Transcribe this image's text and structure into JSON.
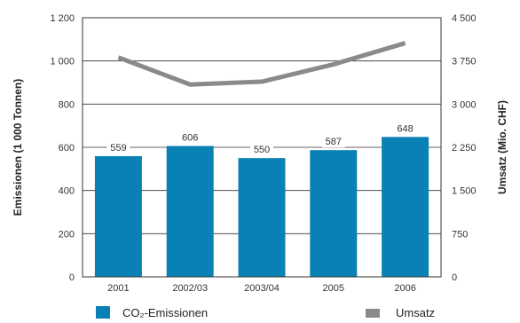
{
  "chart_data": {
    "type": "bar",
    "categories": [
      "2001",
      "2002/03",
      "2003/04",
      "2005",
      "2006"
    ],
    "series": [
      {
        "name": "CO₂-Emissionen",
        "chart_type": "bar",
        "axis": "left",
        "color": "#0a81b5",
        "values": [
          559,
          606,
          550,
          587,
          648
        ],
        "data_labels": [
          "559",
          "606",
          "550",
          "587",
          "648"
        ]
      },
      {
        "name": "Umsatz",
        "chart_type": "line",
        "axis": "right",
        "color": "#8a8a8a",
        "values": [
          3810,
          3340,
          3390,
          3690,
          4060
        ]
      }
    ],
    "y_left": {
      "label": "Emissionen (1 000 Tonnen)",
      "range": [
        0,
        1200
      ],
      "ticks": [
        0,
        200,
        400,
        600,
        800,
        1000,
        1200
      ],
      "tick_labels": [
        "0",
        "200",
        "400",
        "600",
        "800",
        "1 000",
        "1 200"
      ]
    },
    "y_right": {
      "label": "Umsatz (Mio. CHF)",
      "range": [
        0,
        4500
      ],
      "ticks": [
        0,
        750,
        1500,
        2250,
        3000,
        3750,
        4500
      ],
      "tick_labels": [
        "0",
        "750",
        "1 500",
        "2 250",
        "3 000",
        "3 750",
        "4 500"
      ]
    },
    "grid": "horizontal",
    "legend": "bottom",
    "title": "",
    "xlabel": ""
  }
}
